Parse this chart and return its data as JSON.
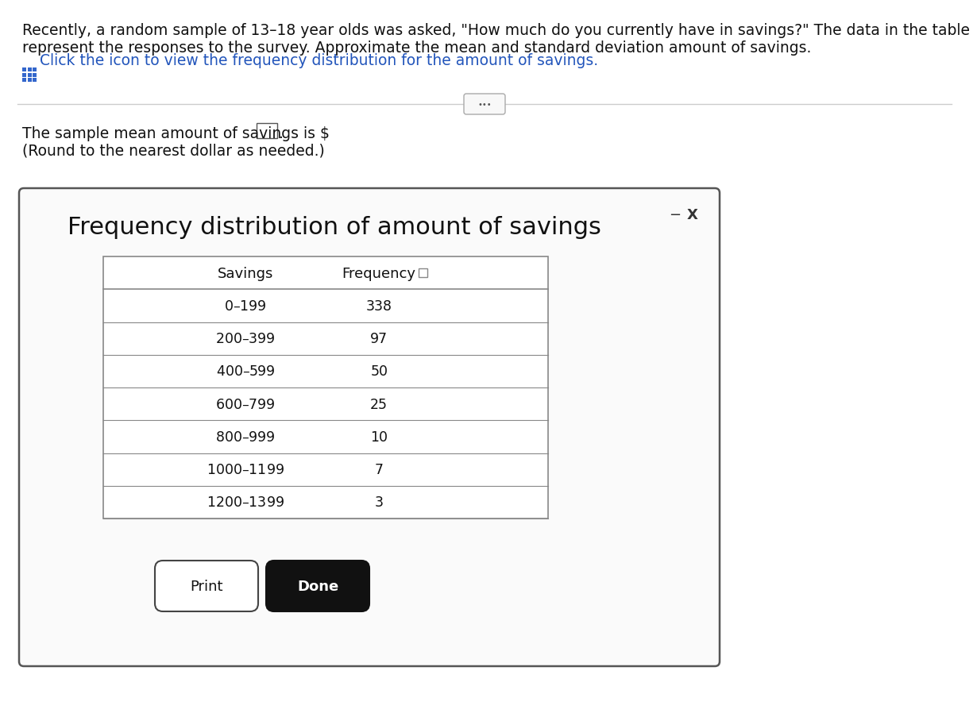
{
  "title_line1": "Recently, a random sample of 13–18 year olds was asked, \"How much do you currently have in savings?\" The data in the table",
  "title_line2": "represent the responses to the survey. Approximate the mean and standard deviation amount of savings.",
  "icon_text": "Click the icon to view the frequency distribution for the amount of savings.",
  "mean_text": "The sample mean amount of savings is $",
  "round_text": "(Round to the nearest dollar as needed.)",
  "popup_title": "Frequency distribution of amount of savings",
  "table_headers": [
    "Savings",
    "Frequency"
  ],
  "savings_ranges": [
    "$0–$199",
    "$200–$399",
    "$400–$599",
    "$600–$799",
    "$800–$999",
    "$1000–$1199",
    "$1200–$1399"
  ],
  "frequencies": [
    "338",
    "97",
    "50",
    "25",
    "10",
    "7",
    "3"
  ],
  "button_print": "Print",
  "button_done": "Done",
  "bg_color": "#ffffff",
  "text_color": "#111111",
  "blue_color": "#2255bb",
  "popup_border": "#555555",
  "table_border": "#888888",
  "grid_icon_color": "#3366cc",
  "title_fs": 13.5,
  "body_fs": 13.0,
  "small_fs": 12.5
}
